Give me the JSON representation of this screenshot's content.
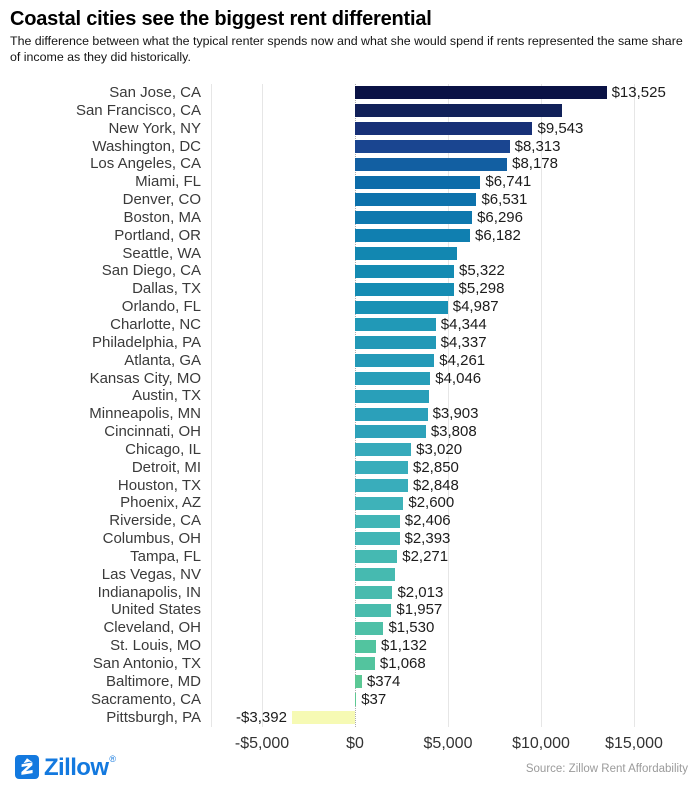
{
  "header": {
    "title": "Coastal cities see the biggest rent differential",
    "subtitle": "The difference between what the typical renter spends now and what she would spend if rents represented the same share of income as they did historically."
  },
  "chart_data": {
    "type": "bar",
    "orientation": "horizontal",
    "title": "Coastal cities see the biggest rent differential",
    "xlabel": "",
    "ylabel": "",
    "xlim": [
      -7750,
      18500
    ],
    "grid": true,
    "value_label_position": "end-of-bar",
    "x_ticks": [
      {
        "value": -5000,
        "label": "-$5,000"
      },
      {
        "value": 0,
        "label": "$0"
      },
      {
        "value": 5000,
        "label": "$5,000"
      },
      {
        "value": 10000,
        "label": "$10,000"
      },
      {
        "value": 15000,
        "label": "$15,000"
      }
    ],
    "rows": [
      {
        "category": "San Jose, CA",
        "value": 13525,
        "label": "$13,525",
        "color": "#0a1245"
      },
      {
        "category": "San Francisco, CA",
        "value": 11130,
        "label": null,
        "color": "#112159"
      },
      {
        "category": "New York, NY",
        "value": 9543,
        "label": "$9,543",
        "color": "#173077"
      },
      {
        "category": "Washington, DC",
        "value": 8313,
        "label": "$8,313",
        "color": "#1a4590"
      },
      {
        "category": "Los Angeles, CA",
        "value": 8178,
        "label": "$8,178",
        "color": "#125fa2"
      },
      {
        "category": "Miami, FL",
        "value": 6741,
        "label": "$6,741",
        "color": "#0c6ca9"
      },
      {
        "category": "Denver, CO",
        "value": 6531,
        "label": "$6,531",
        "color": "#0d72ac"
      },
      {
        "category": "Boston, MA",
        "value": 6296,
        "label": "$6,296",
        "color": "#0f78ae"
      },
      {
        "category": "Portland, OR",
        "value": 6182,
        "label": "$6,182",
        "color": "#107fb0"
      },
      {
        "category": "Seattle, WA",
        "value": 5500,
        "label": null,
        "color": "#1287b1"
      },
      {
        "category": "San Diego, CA",
        "value": 5322,
        "label": "$5,322",
        "color": "#148bb2"
      },
      {
        "category": "Dallas, TX",
        "value": 5298,
        "label": "$5,298",
        "color": "#158cb3"
      },
      {
        "category": "Orlando, FL",
        "value": 4987,
        "label": "$4,987",
        "color": "#1991b5"
      },
      {
        "category": "Charlotte, NC",
        "value": 4344,
        "label": "$4,344",
        "color": "#2199b7"
      },
      {
        "category": "Philadelphia, PA",
        "value": 4337,
        "label": "$4,337",
        "color": "#2299b7"
      },
      {
        "category": "Atlanta, GA",
        "value": 4261,
        "label": "$4,261",
        "color": "#249ab8"
      },
      {
        "category": "Kansas City, MO",
        "value": 4046,
        "label": "$4,046",
        "color": "#289eb9"
      },
      {
        "category": "Austin, TX",
        "value": 3980,
        "label": null,
        "color": "#299fb9"
      },
      {
        "category": "Minneapolis, MN",
        "value": 3903,
        "label": "$3,903",
        "color": "#2ba0ba"
      },
      {
        "category": "Cincinnati, OH",
        "value": 3808,
        "label": "$3,808",
        "color": "#2da2ba"
      },
      {
        "category": "Chicago, IL",
        "value": 3020,
        "label": "$3,020",
        "color": "#36aabb"
      },
      {
        "category": "Detroit, MI",
        "value": 2850,
        "label": "$2,850",
        "color": "#39adbb"
      },
      {
        "category": "Houston, TX",
        "value": 2848,
        "label": "$2,848",
        "color": "#39adbb"
      },
      {
        "category": "Phoenix, AZ",
        "value": 2600,
        "label": "$2,600",
        "color": "#3eb2b9"
      },
      {
        "category": "Riverside, CA",
        "value": 2406,
        "label": "$2,406",
        "color": "#41b5b6"
      },
      {
        "category": "Columbus, OH",
        "value": 2393,
        "label": "$2,393",
        "color": "#42b5b6"
      },
      {
        "category": "Tampa, FL",
        "value": 2271,
        "label": "$2,271",
        "color": "#45b9b2"
      },
      {
        "category": "Las Vegas, NV",
        "value": 2150,
        "label": null,
        "color": "#46bab0"
      },
      {
        "category": "Indianapolis, IN",
        "value": 2013,
        "label": "$2,013",
        "color": "#48bbae"
      },
      {
        "category": "United States",
        "value": 1957,
        "label": "$1,957",
        "color": "#49bcad"
      },
      {
        "category": "Cleveland, OH",
        "value": 1530,
        "label": "$1,530",
        "color": "#4ec0a7"
      },
      {
        "category": "St. Louis, MO",
        "value": 1132,
        "label": "$1,132",
        "color": "#52c49f"
      },
      {
        "category": "San Antonio, TX",
        "value": 1068,
        "label": "$1,068",
        "color": "#53c49e"
      },
      {
        "category": "Baltimore, MD",
        "value": 374,
        "label": "$374",
        "color": "#5bc895"
      },
      {
        "category": "Sacramento, CA",
        "value": 37,
        "label": "$37",
        "color": "#5dc993"
      },
      {
        "category": "Pittsburgh, PA",
        "value": -3392,
        "label": "-$3,392",
        "color": "#f6fab4"
      }
    ]
  },
  "footer": {
    "brand": "Zillow",
    "registered_mark": "®",
    "source": "Source: Zillow Rent Affordability",
    "brand_color": "#1379df"
  }
}
